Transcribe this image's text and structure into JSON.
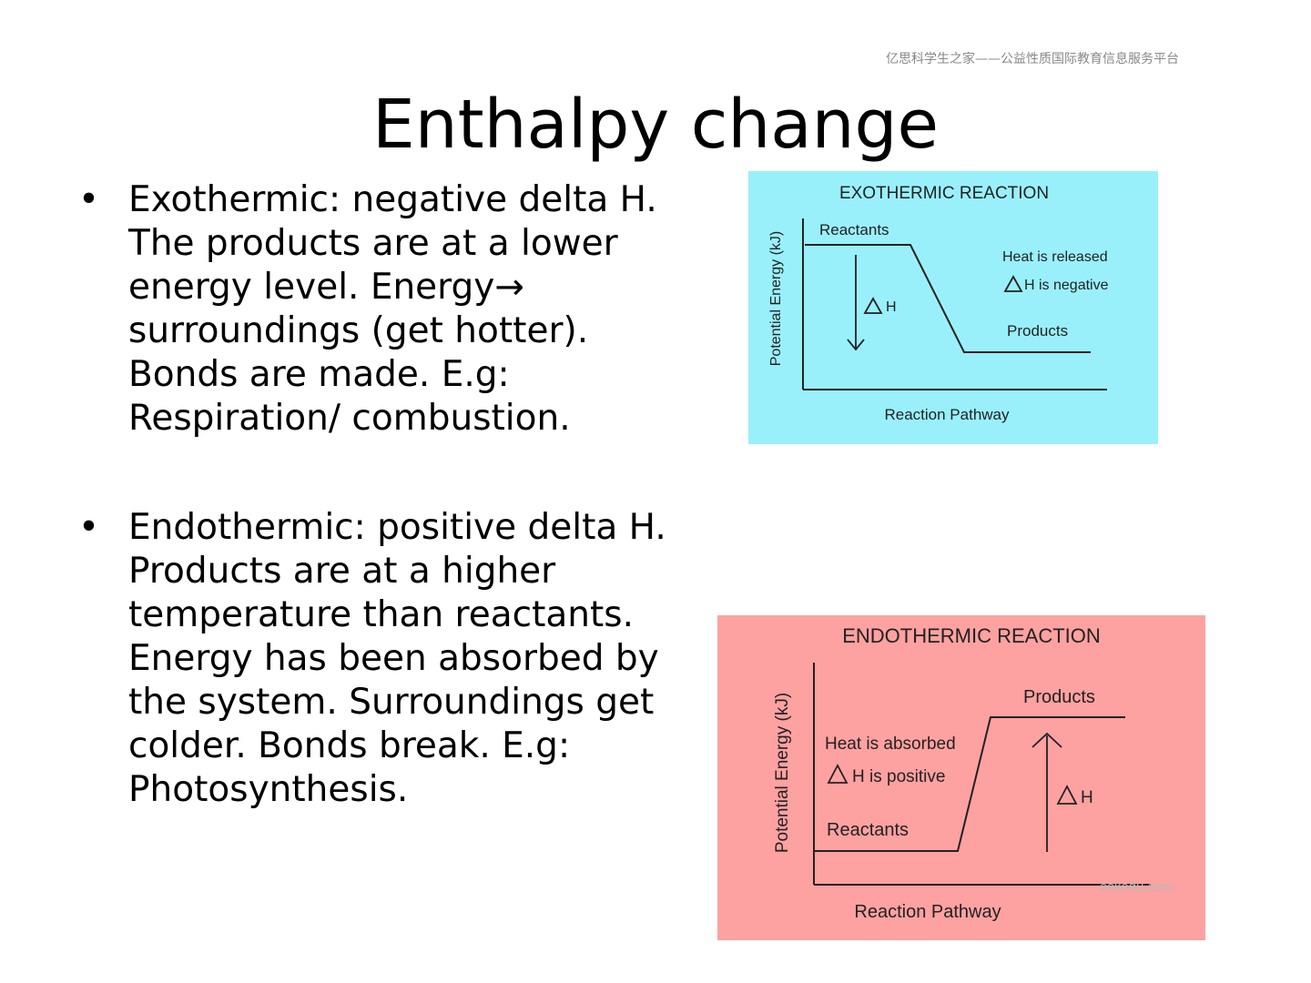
{
  "header_note": "亿思科学生之家——公益性质国际教育信息服务平台",
  "title": "Enthalpy change",
  "bullet_symbol": "•",
  "bullets": [
    {
      "lines": [
        "Exothermic: negative delta H.",
        "The products are at a lower",
        "energy level. Energy→",
        "surroundings (get hotter).",
        "Bonds are made. E.g:",
        "Respiration/ combustion."
      ]
    },
    {
      "lines": [
        "Endothermic: positive delta H.",
        "Products are at a higher",
        "temperature than reactants.",
        "Energy has been absorbed by",
        "the system. Surroundings  get",
        "colder. Bonds break. E.g:",
        "Photosynthesis."
      ]
    }
  ],
  "diagrams": {
    "exo": {
      "bg_color": "#99f0fb",
      "title": "EXOTHERMIC REACTION",
      "ylabel": "Potential Energy (kJ)",
      "xlabel": "Reaction Pathway",
      "reactants": "Reactants",
      "products": "Products",
      "heat_note": "Heat is released",
      "delta_note": "H is negative",
      "delta_h": "H"
    },
    "endo": {
      "bg_color": "#fea1a1",
      "title": "ENDOTHERMIC REACTION",
      "ylabel": "Potential Energy (kJ)",
      "xlabel": "Reaction Pathway",
      "reactants": "Reactants",
      "products": "Products",
      "heat_note": "Heat is absorbed",
      "delta_note": "H is positive",
      "delta_h": "H"
    }
  },
  "watermark": "eskedu.com"
}
